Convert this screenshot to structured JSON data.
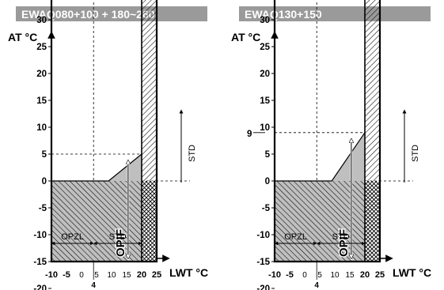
{
  "charts": [
    {
      "header": "EWAQ080+100 + 180~260",
      "y_axis_label": "AT °C",
      "x_axis_label": "LWT °C",
      "y_ticks": [
        "45",
        "40",
        "35",
        "30",
        "25",
        "20",
        "15",
        "10",
        "5",
        "0",
        "-5",
        "-10",
        "-15",
        "-20"
      ],
      "y_bold_ticks": [
        "40",
        "35",
        "30",
        "25",
        "20",
        "15",
        "10",
        "5",
        "0",
        "-5",
        "-10",
        "-15",
        "-20"
      ],
      "y_special_label": "43",
      "x_ticks": [
        "-10",
        "-5",
        "0",
        "5",
        "10",
        "15",
        "20",
        "25"
      ],
      "x_special_label": "4",
      "zone_left_label": "OPZL",
      "zone_right_label": "STD",
      "vertical_std_label": "STD",
      "opif_label": "OPIF",
      "gray_zone_top_at": 5
    },
    {
      "header": "EWAQ130+150",
      "y_axis_label": "AT °C",
      "x_axis_label": "LWT °C",
      "y_ticks": [
        "45",
        "40",
        "35",
        "30",
        "25",
        "20",
        "15",
        "10",
        "5",
        "0",
        "-5",
        "-10",
        "-15",
        "-20"
      ],
      "y_bold_ticks": [
        "40",
        "35",
        "30",
        "25",
        "20",
        "15",
        "10",
        "5",
        "0",
        "-5",
        "-10",
        "-15",
        "-20"
      ],
      "y_special_label": "43",
      "y_special_label_2": "9",
      "x_ticks": [
        "-10",
        "-5",
        "0",
        "5",
        "10",
        "15",
        "20",
        "25"
      ],
      "x_special_label": "4",
      "zone_left_label": "OPZL",
      "zone_right_label": "STD",
      "vertical_std_label": "STD",
      "opif_label": "OPIF",
      "gray_zone_top_at": 9
    }
  ]
}
